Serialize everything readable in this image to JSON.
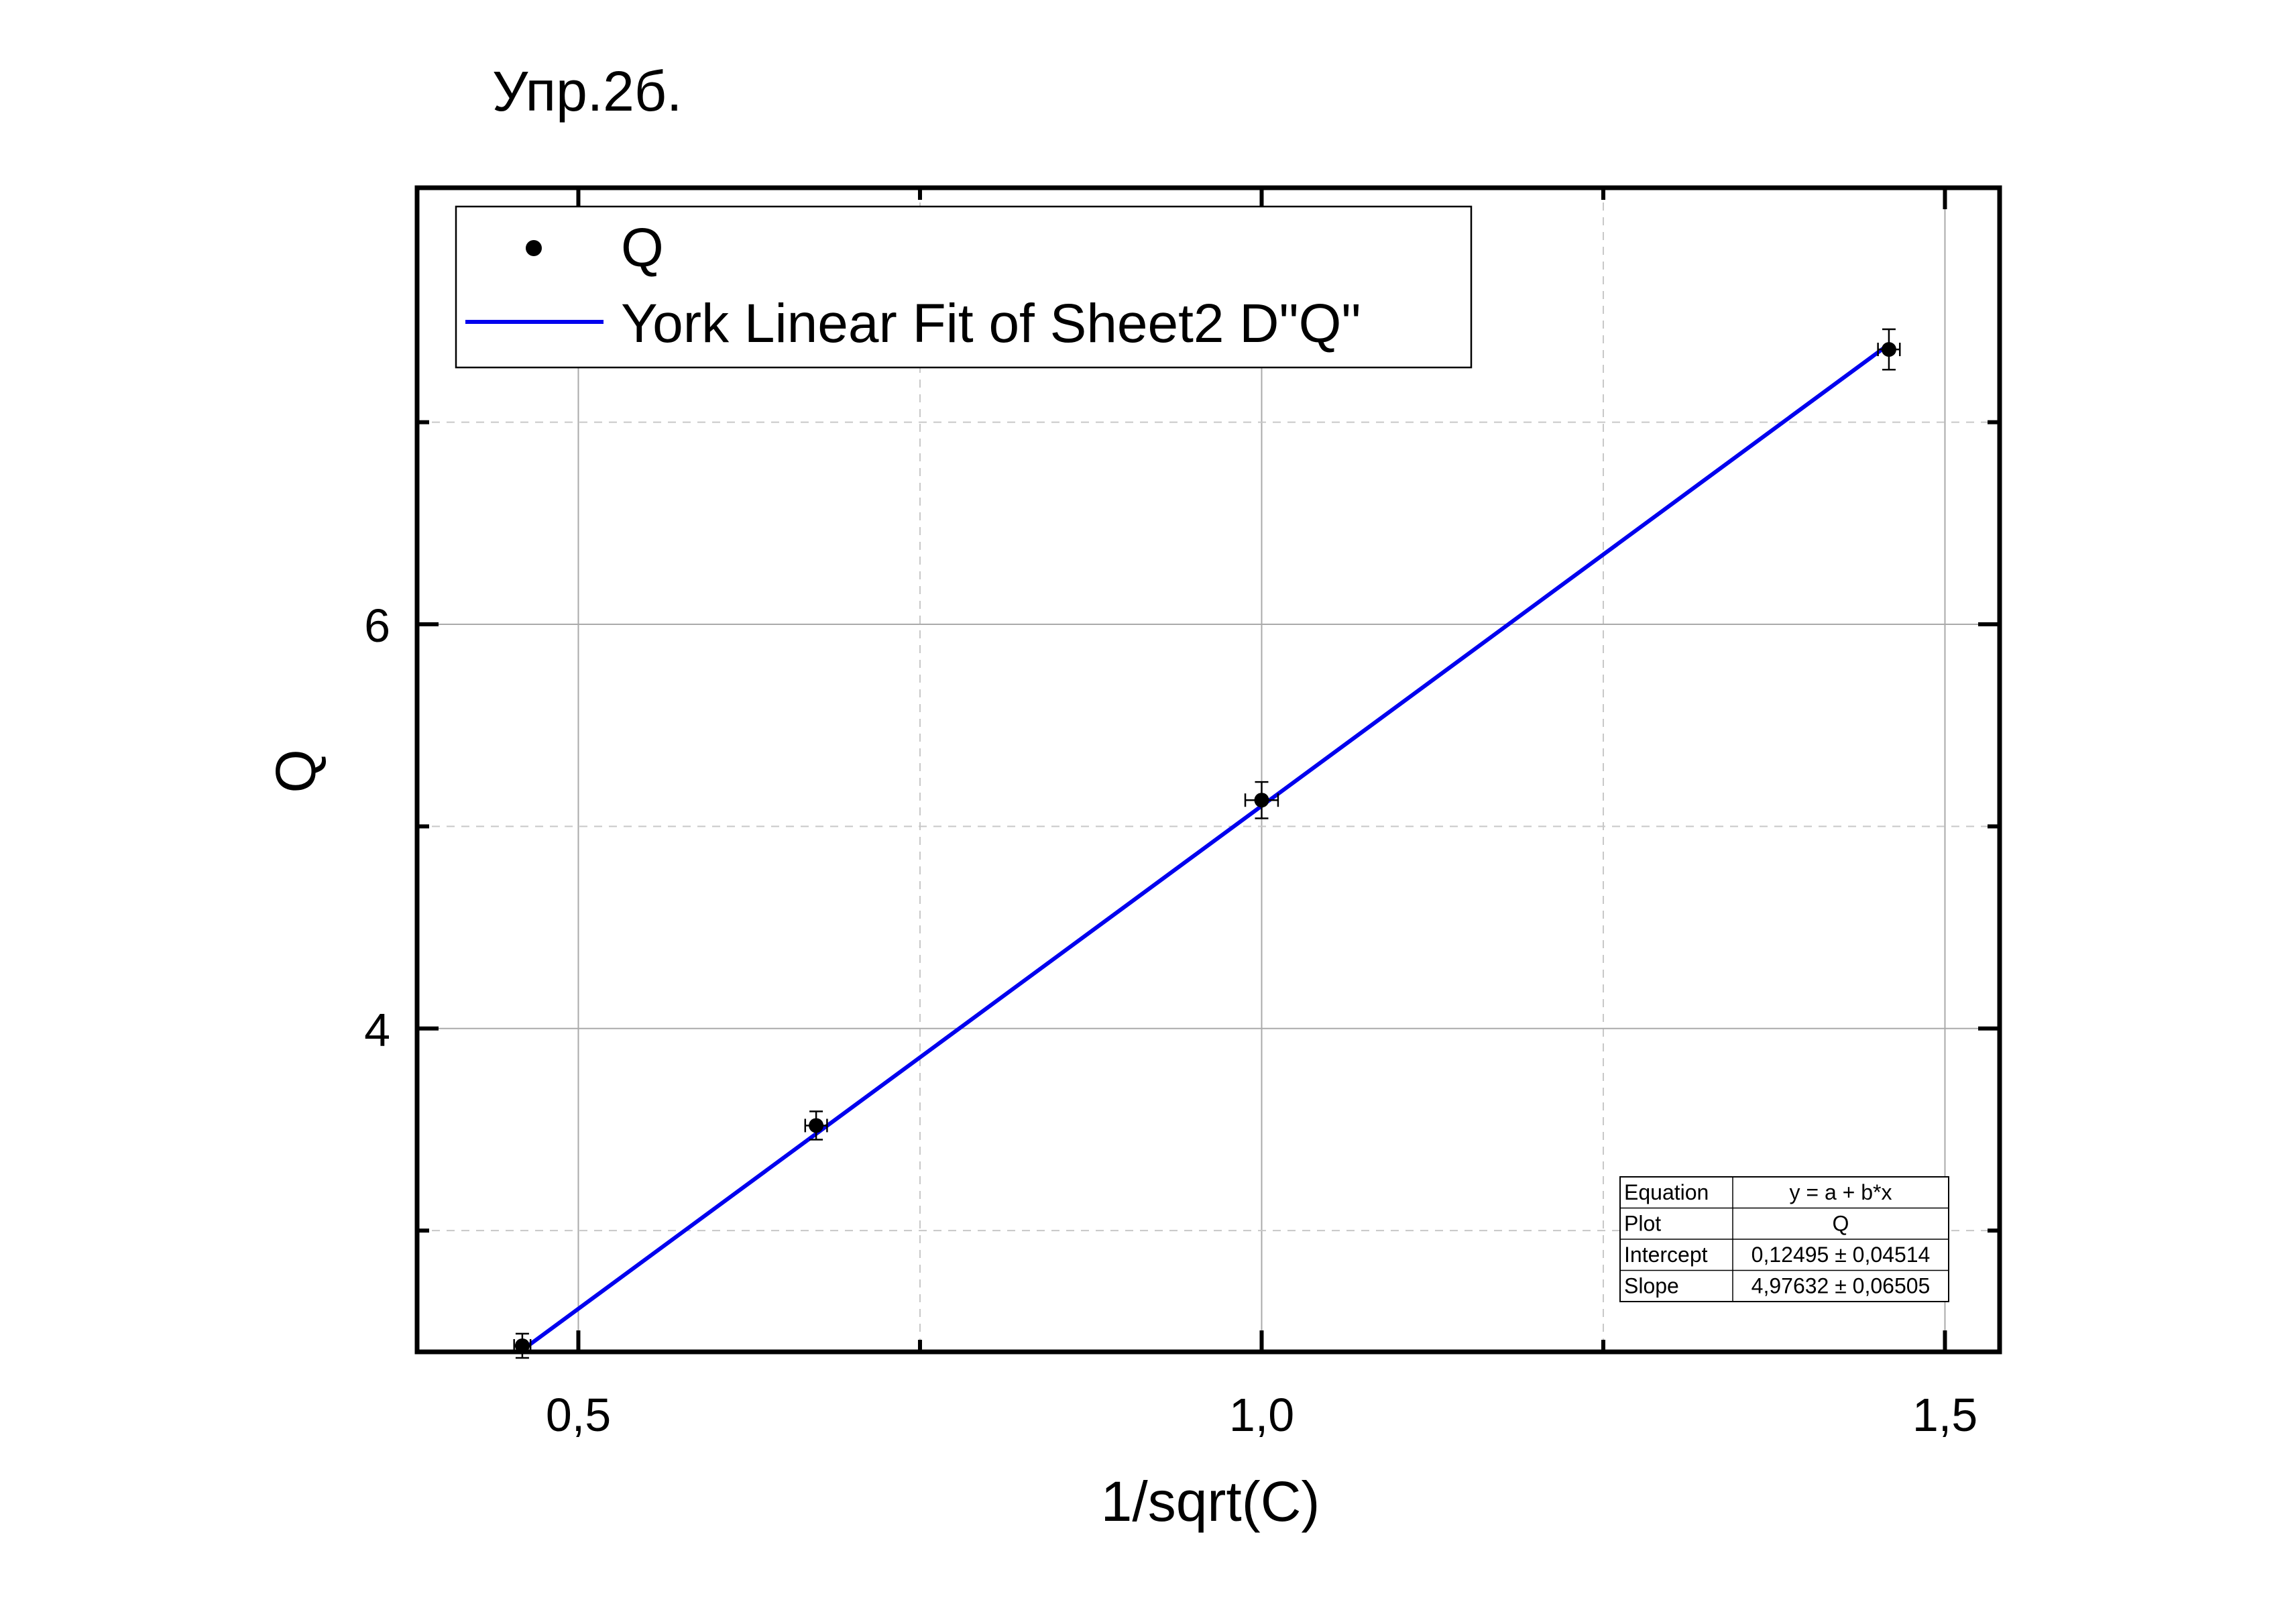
{
  "page_title": "Упр.2б.",
  "chart_data": {
    "type": "scatter",
    "xlabel": "1/sqrt(C)",
    "ylabel": "Q",
    "xlim": [
      0.382,
      1.54
    ],
    "ylim": [
      2.4,
      8.16
    ],
    "x_ticks": [
      {
        "value": 0.5,
        "label": "0,5"
      },
      {
        "value": 1.0,
        "label": "1,0"
      },
      {
        "value": 1.5,
        "label": "1,5"
      }
    ],
    "x_minor_ticks": [
      0.75,
      1.25
    ],
    "y_ticks": [
      {
        "value": 4,
        "label": "4"
      },
      {
        "value": 6,
        "label": "6"
      }
    ],
    "y_minor_ticks": [
      3,
      5,
      7
    ],
    "grid": true,
    "legend_position": "top-left",
    "series": [
      {
        "name": "Q",
        "kind": "points",
        "color": "#000000",
        "x": [
          0.459,
          0.674,
          1.0,
          1.459
        ],
        "y": [
          2.43,
          3.52,
          5.13,
          7.36
        ],
        "x_err": [
          0.006,
          0.008,
          0.012,
          0.008
        ],
        "y_err": [
          0.06,
          0.07,
          0.09,
          0.1
        ]
      },
      {
        "name": "York Linear Fit of Sheet2 D\"Q\"",
        "kind": "line",
        "color": "#0000ee",
        "intercept": 0.12495,
        "slope": 4.97632,
        "x_range": [
          0.459,
          1.459
        ]
      }
    ],
    "fit_table": {
      "rows": [
        {
          "label": "Equation",
          "value": "y = a + b*x"
        },
        {
          "label": "Plot",
          "value": "Q"
        },
        {
          "label": "Intercept",
          "value": "0,12495 ± 0,04514"
        },
        {
          "label": "Slope",
          "value": "4,97632 ± 0,06505"
        }
      ]
    }
  }
}
